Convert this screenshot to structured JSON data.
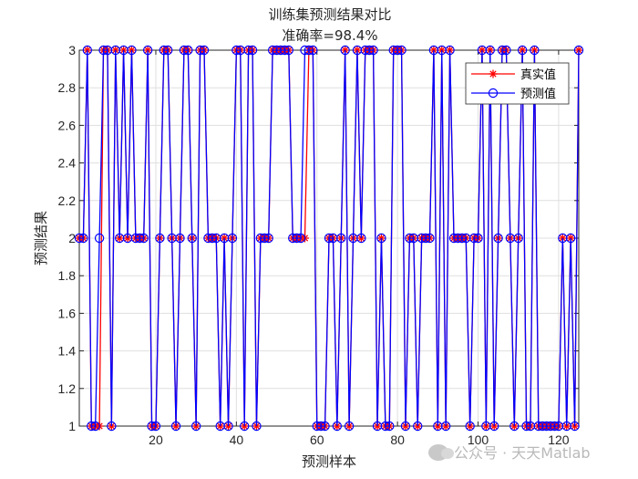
{
  "chart_data": {
    "type": "line",
    "title": "训练集预测结果对比",
    "subtitle": "准确率=98.4%",
    "xlabel": "预测样本",
    "ylabel": "预测结果",
    "xlim": [
      1,
      125
    ],
    "ylim": [
      1,
      3
    ],
    "xticks": [
      "20",
      "40",
      "60",
      "80",
      "100",
      "120"
    ],
    "yticks": [
      "1",
      "1.2",
      "1.4",
      "1.6",
      "1.8",
      "2",
      "2.2",
      "2.4",
      "2.6",
      "2.8",
      "3"
    ],
    "grid": true,
    "legend_position": "top-right",
    "x": [
      1,
      2,
      3,
      4,
      5,
      6,
      7,
      8,
      9,
      10,
      11,
      12,
      13,
      14,
      15,
      16,
      17,
      18,
      19,
      20,
      21,
      22,
      23,
      24,
      25,
      26,
      27,
      28,
      29,
      30,
      31,
      32,
      33,
      34,
      35,
      36,
      37,
      38,
      39,
      40,
      41,
      42,
      43,
      44,
      45,
      46,
      47,
      48,
      49,
      50,
      51,
      52,
      53,
      54,
      55,
      56,
      57,
      58,
      59,
      60,
      61,
      62,
      63,
      64,
      65,
      66,
      67,
      68,
      69,
      70,
      71,
      72,
      73,
      74,
      75,
      76,
      77,
      78,
      79,
      80,
      81,
      82,
      83,
      84,
      85,
      86,
      87,
      88,
      89,
      90,
      91,
      92,
      93,
      94,
      95,
      96,
      97,
      98,
      99,
      100,
      101,
      102,
      103,
      104,
      105,
      106,
      107,
      108,
      109,
      110,
      111,
      112,
      113,
      114,
      115,
      116,
      117,
      118,
      119,
      120,
      121,
      122,
      123,
      124,
      125
    ],
    "series": [
      {
        "name": "真实值",
        "color": "#ff0000",
        "marker": "asterisk",
        "values": [
          2,
          2,
          3,
          1,
          1,
          1,
          3,
          3,
          1,
          3,
          2,
          3,
          2,
          3,
          2,
          2,
          2,
          3,
          1,
          1,
          2,
          3,
          3,
          2,
          1,
          2,
          3,
          3,
          2,
          1,
          3,
          3,
          2,
          2,
          2,
          1,
          2,
          1,
          2,
          3,
          3,
          1,
          3,
          3,
          1,
          2,
          2,
          2,
          3,
          3,
          3,
          3,
          3,
          2,
          2,
          2,
          2,
          3,
          3,
          1,
          1,
          1,
          2,
          2,
          1,
          2,
          3,
          1,
          2,
          3,
          2,
          3,
          3,
          3,
          1,
          2,
          1,
          1,
          3,
          3,
          3,
          1,
          2,
          2,
          1,
          2,
          2,
          2,
          3,
          1,
          3,
          1,
          3,
          2,
          2,
          2,
          2,
          1,
          2,
          2,
          3,
          1,
          3,
          1,
          2,
          3,
          3,
          2,
          1,
          2,
          3,
          1,
          1,
          3,
          1,
          1,
          1,
          1,
          1,
          1,
          2,
          1,
          2,
          1,
          3
        ]
      },
      {
        "name": "预测值",
        "color": "#0000ff",
        "marker": "circle",
        "values": [
          2,
          2,
          3,
          1,
          1,
          2,
          3,
          3,
          1,
          3,
          2,
          3,
          2,
          3,
          2,
          2,
          2,
          3,
          1,
          1,
          2,
          3,
          3,
          2,
          1,
          2,
          3,
          3,
          2,
          1,
          3,
          3,
          2,
          2,
          2,
          1,
          2,
          1,
          2,
          3,
          3,
          1,
          3,
          3,
          1,
          2,
          2,
          2,
          3,
          3,
          3,
          3,
          3,
          2,
          2,
          2,
          3,
          3,
          3,
          1,
          1,
          1,
          2,
          2,
          1,
          2,
          3,
          1,
          2,
          3,
          2,
          3,
          3,
          3,
          1,
          2,
          1,
          1,
          3,
          3,
          3,
          1,
          2,
          2,
          1,
          2,
          2,
          2,
          3,
          1,
          3,
          1,
          3,
          2,
          2,
          2,
          2,
          1,
          2,
          2,
          3,
          1,
          3,
          1,
          2,
          3,
          3,
          2,
          1,
          2,
          3,
          1,
          1,
          3,
          1,
          1,
          1,
          1,
          1,
          1,
          2,
          1,
          2,
          1,
          3
        ]
      }
    ]
  },
  "watermark": {
    "text": "公众号 · 天天Matlab",
    "icon": "wechat-icon"
  }
}
